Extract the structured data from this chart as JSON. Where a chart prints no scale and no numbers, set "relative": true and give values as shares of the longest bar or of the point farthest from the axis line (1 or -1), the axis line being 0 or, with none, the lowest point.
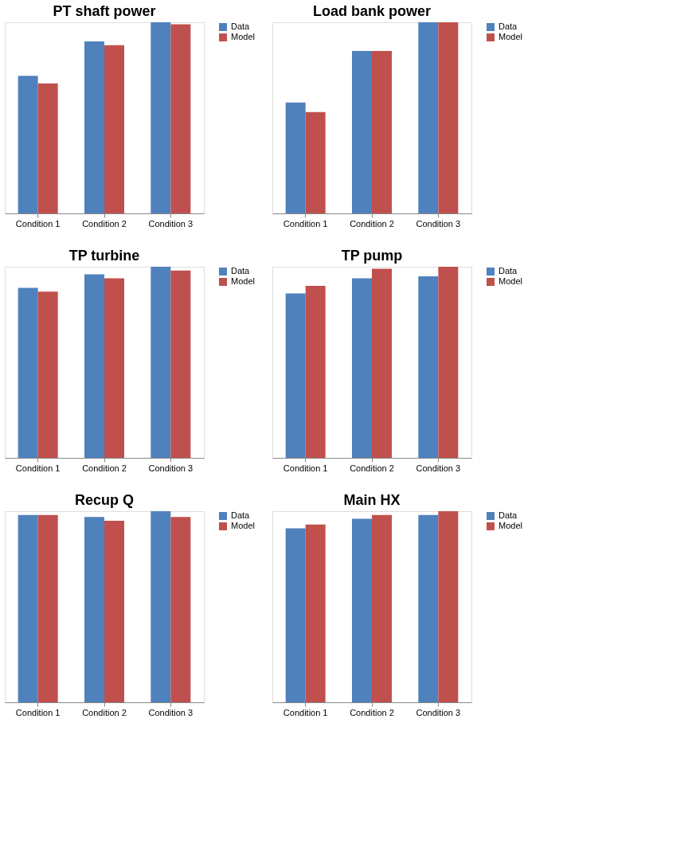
{
  "chart_data": [
    {
      "type": "bar",
      "title": "PT shaft power",
      "categories": [
        "Condition 1",
        "Condition 2",
        "Condition 3"
      ],
      "relative": true,
      "legend": "right",
      "grid": false,
      "series": [
        {
          "name": "Data",
          "color": "#4f81bd",
          "values": [
            0.72,
            0.9,
            1
          ]
        },
        {
          "name": "Model",
          "color": "#c0504d",
          "values": [
            0.68,
            0.88,
            0.99
          ]
        }
      ]
    },
    {
      "type": "bar",
      "title": "Load bank power",
      "categories": [
        "Condition 1",
        "Condition 2",
        "Condition 3"
      ],
      "relative": true,
      "legend": "right",
      "grid": false,
      "series": [
        {
          "name": "Data",
          "color": "#4f81bd",
          "values": [
            0.58,
            0.85,
            1
          ]
        },
        {
          "name": "Model",
          "color": "#c0504d",
          "values": [
            0.53,
            0.85,
            1
          ]
        }
      ]
    },
    {
      "type": "bar",
      "title": "TP turbine",
      "categories": [
        "Condition 1",
        "Condition 2",
        "Condition 3"
      ],
      "relative": true,
      "legend": "right",
      "grid": false,
      "series": [
        {
          "name": "Data",
          "color": "#4f81bd",
          "values": [
            0.89,
            0.96,
            1
          ]
        },
        {
          "name": "Model",
          "color": "#c0504d",
          "values": [
            0.87,
            0.94,
            0.98
          ]
        }
      ]
    },
    {
      "type": "bar",
      "title": "TP pump",
      "categories": [
        "Condition 1",
        "Condition 2",
        "Condition 3"
      ],
      "relative": true,
      "legend": "right",
      "grid": false,
      "series": [
        {
          "name": "Data",
          "color": "#4f81bd",
          "values": [
            0.86,
            0.94,
            0.95
          ]
        },
        {
          "name": "Model",
          "color": "#c0504d",
          "values": [
            0.9,
            0.99,
            1
          ]
        }
      ]
    },
    {
      "type": "bar",
      "title": "Recup Q",
      "categories": [
        "Condition 1",
        "Condition 2",
        "Condition 3"
      ],
      "relative": true,
      "legend": "right",
      "grid": false,
      "series": [
        {
          "name": "Data",
          "color": "#4f81bd",
          "values": [
            0.98,
            0.97,
            1
          ]
        },
        {
          "name": "Model",
          "color": "#c0504d",
          "values": [
            0.98,
            0.95,
            0.97
          ]
        }
      ]
    },
    {
      "type": "bar",
      "title": "Main HX",
      "categories": [
        "Condition 1",
        "Condition 2",
        "Condition 3"
      ],
      "relative": true,
      "legend": "right",
      "grid": false,
      "series": [
        {
          "name": "Data",
          "color": "#4f81bd",
          "values": [
            0.91,
            0.96,
            0.98
          ]
        },
        {
          "name": "Model",
          "color": "#c0504d",
          "values": [
            0.93,
            0.98,
            1
          ]
        }
      ]
    }
  ]
}
